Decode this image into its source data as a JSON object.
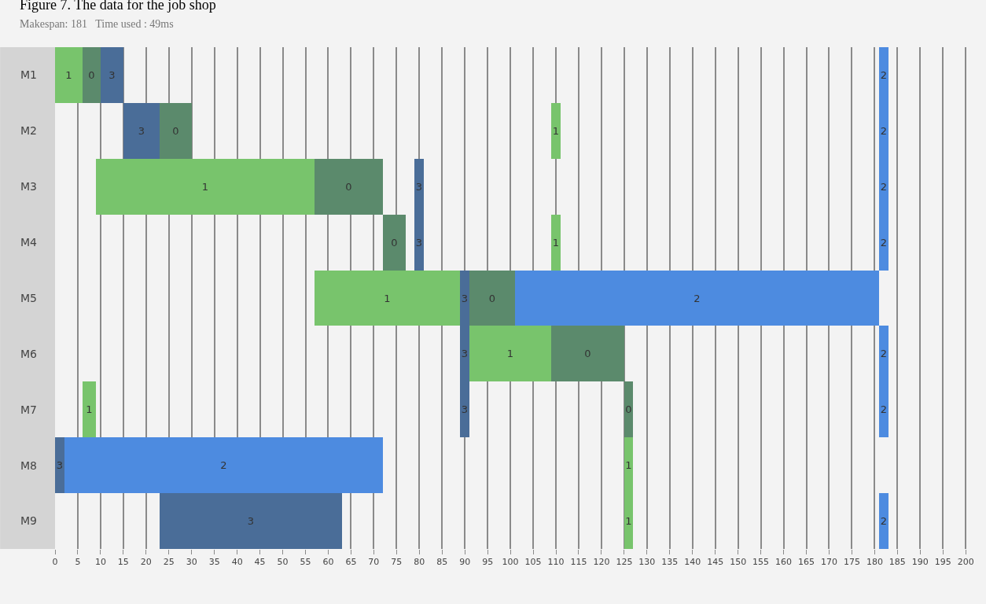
{
  "chart_data": {
    "type": "bar",
    "orientation": "horizontal",
    "title": "Figure 7. The data for the job shop",
    "subtitle": "Makespan: 181   Time used : 49ms",
    "categories": [
      "M1",
      "M2",
      "M3",
      "M4",
      "M5",
      "M6",
      "M7",
      "M8",
      "M9"
    ],
    "series": [
      {
        "name": "0",
        "color": "#5b8a6c",
        "base": [
          6,
          23,
          57,
          72,
          91,
          109,
          125,
          null,
          null
        ],
        "values": [
          4,
          7,
          15,
          5,
          10,
          16,
          2,
          null,
          null
        ]
      },
      {
        "name": "1",
        "color": "#78c46c",
        "base": [
          0,
          109,
          9,
          109,
          57,
          91,
          6,
          125,
          125
        ],
        "values": [
          6,
          2,
          48,
          2,
          32,
          18,
          3,
          2,
          2
        ]
      },
      {
        "name": "2",
        "color": "#4d8be0",
        "base": [
          181,
          181,
          181,
          181,
          101,
          181,
          181,
          2,
          181
        ],
        "values": [
          2,
          2,
          2,
          2,
          80,
          2,
          2,
          70,
          2
        ]
      },
      {
        "name": "3",
        "color": "#4a6d98",
        "base": [
          10,
          15,
          79,
          79,
          89,
          89,
          89,
          0,
          23
        ],
        "values": [
          5,
          8,
          2,
          2,
          2,
          2,
          2,
          2,
          40
        ]
      }
    ],
    "xlim": [
      0,
      201
    ],
    "xticks": [
      0,
      5,
      10,
      15,
      20,
      25,
      30,
      35,
      40,
      45,
      50,
      55,
      60,
      65,
      70,
      75,
      80,
      85,
      90,
      95,
      100,
      105,
      110,
      115,
      120,
      125,
      130,
      135,
      140,
      145,
      150,
      155,
      160,
      165,
      170,
      175,
      180,
      185,
      190,
      195,
      200
    ],
    "grid": "x",
    "legend": false
  }
}
